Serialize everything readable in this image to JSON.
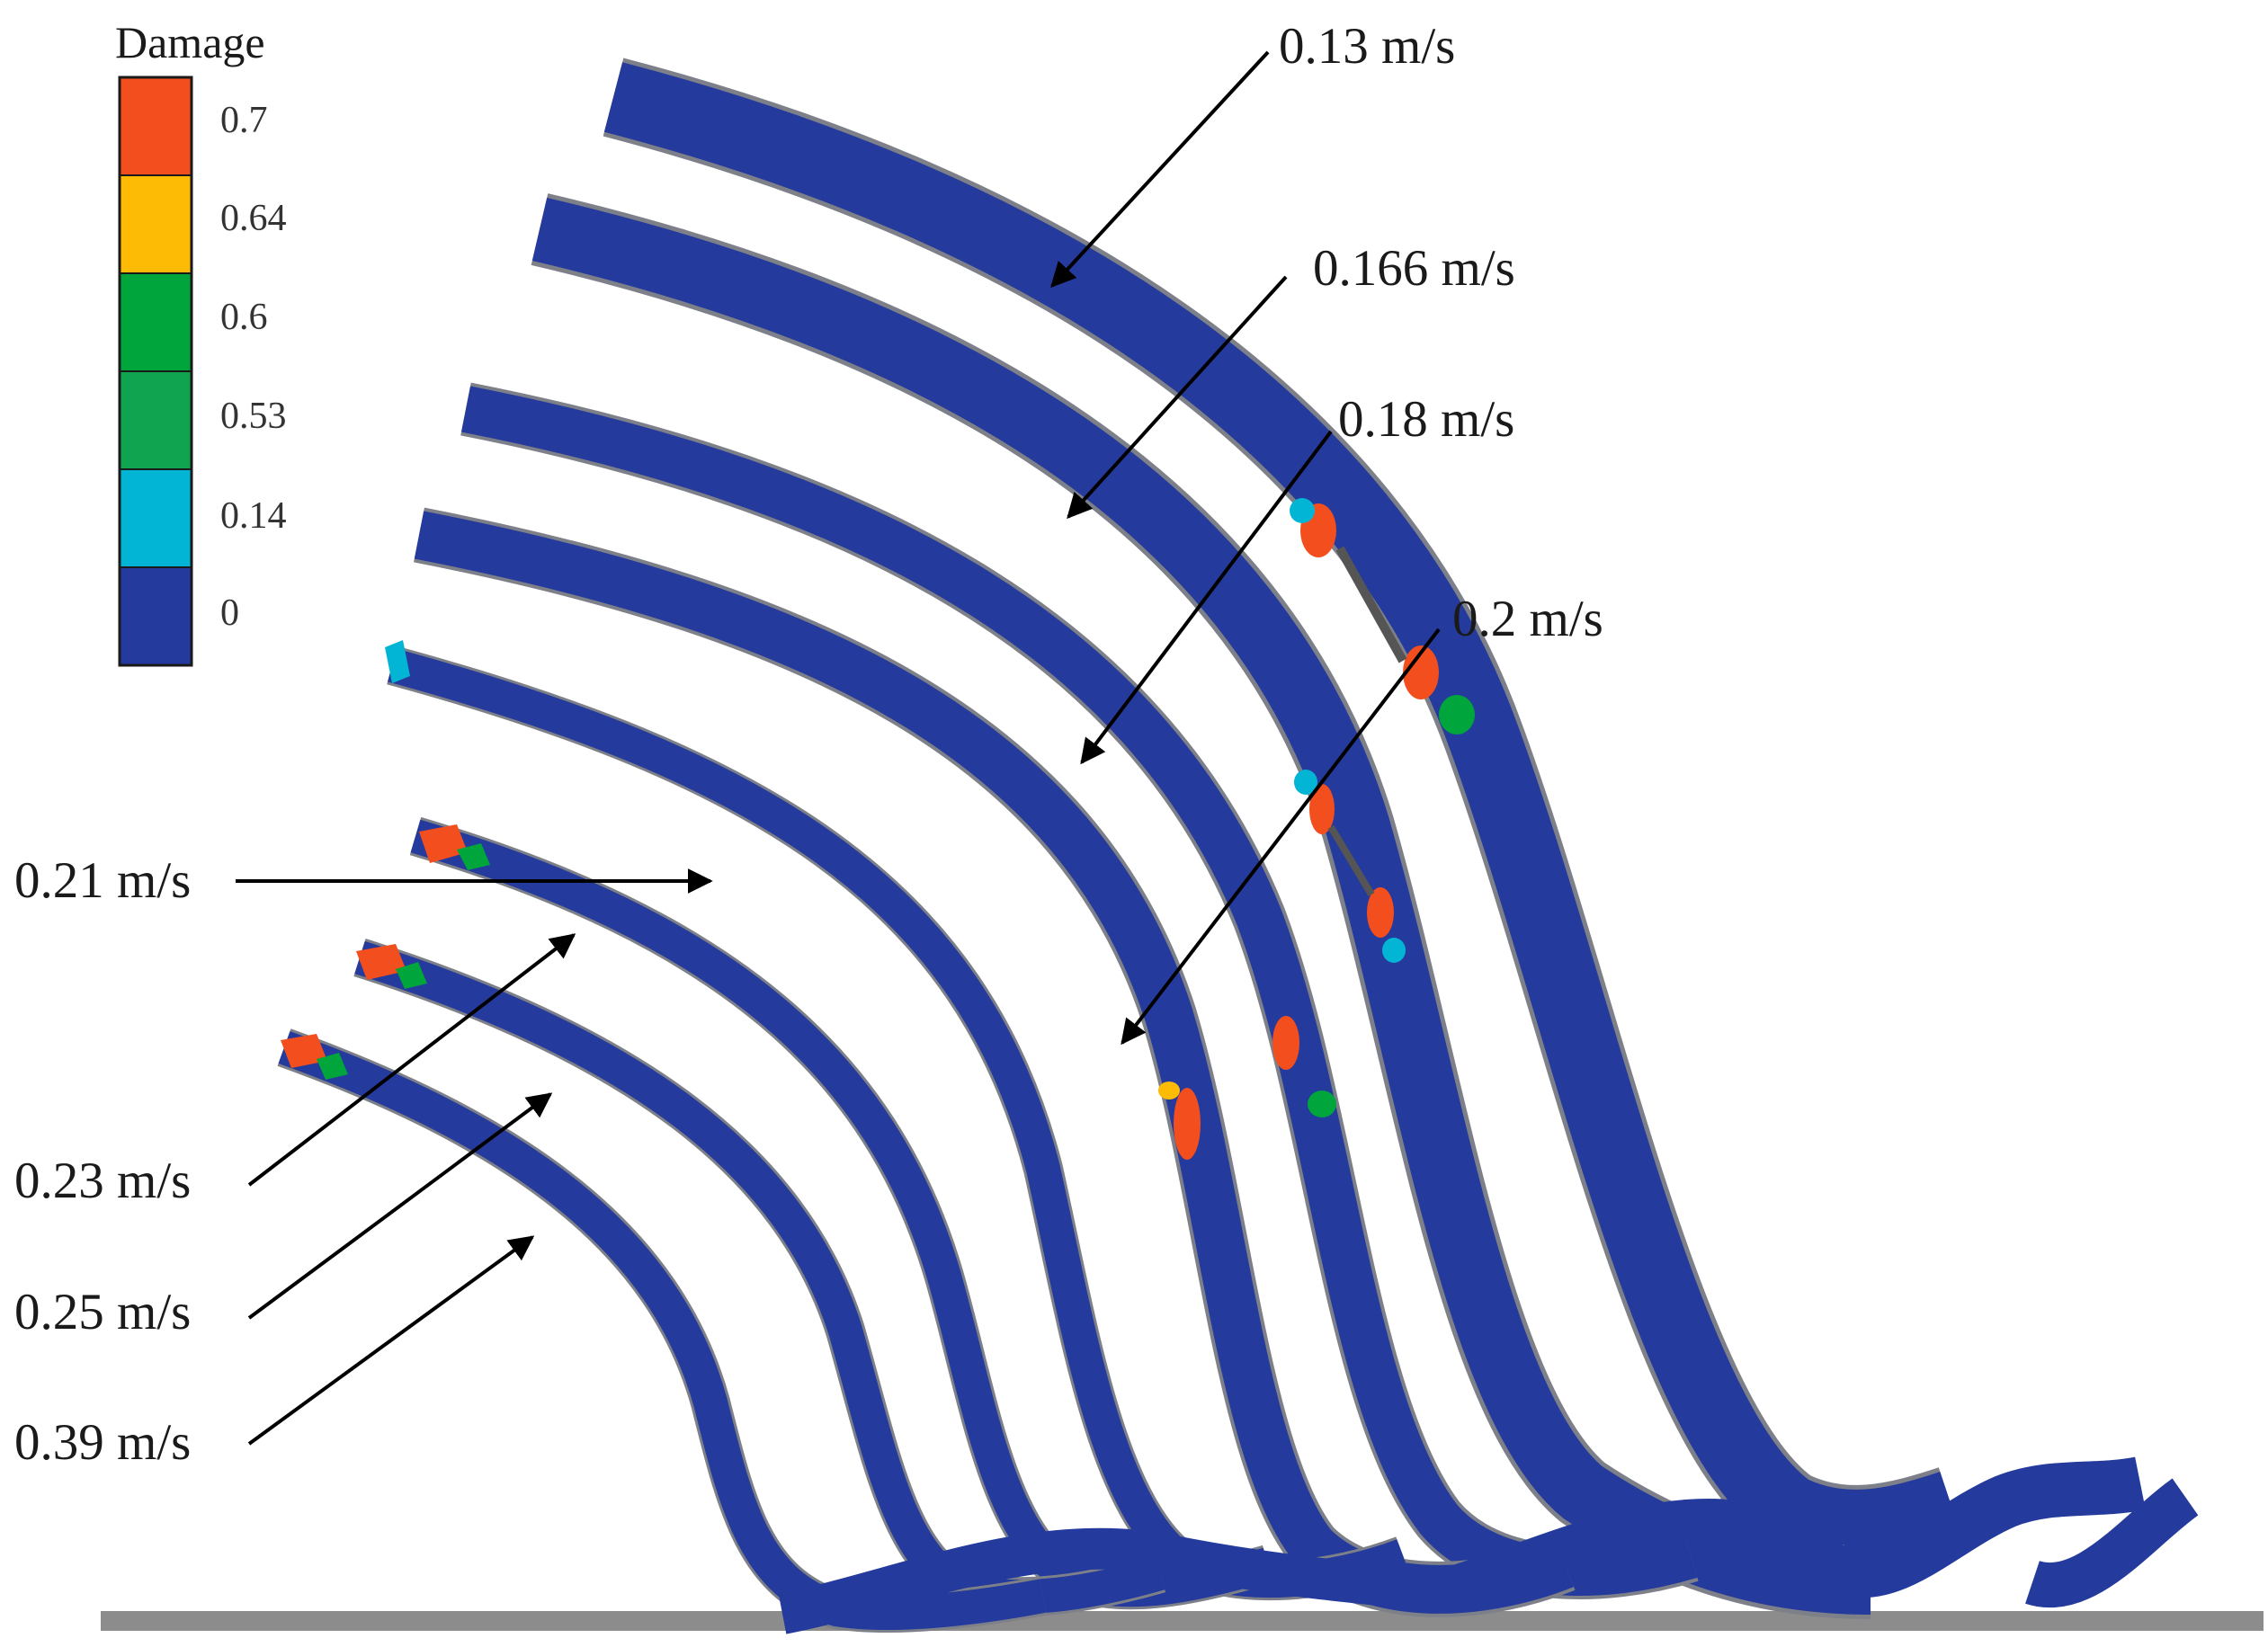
{
  "colors": {
    "background": "#ffffff",
    "strip": "#243a9c",
    "ground": "#8c8c8c",
    "damage_scale": [
      "#f24e1e",
      "#fdbb05",
      "#00a53c",
      "#10a450",
      "#03b5d4",
      "#243a9c"
    ]
  },
  "legend": {
    "title": "Damage",
    "ticks": [
      "0.7",
      "0.64",
      "0.6",
      "0.53",
      "0.14",
      "0"
    ]
  },
  "labels": {
    "v013": "0.13 m/s",
    "v0166": "0.166 m/s",
    "v018": "0.18 m/s",
    "v02": "0.2 m/s",
    "v021": "0.21 m/s",
    "v023": "0.23 m/s",
    "v025": "0.25 m/s",
    "v039": "0.39 m/s"
  }
}
